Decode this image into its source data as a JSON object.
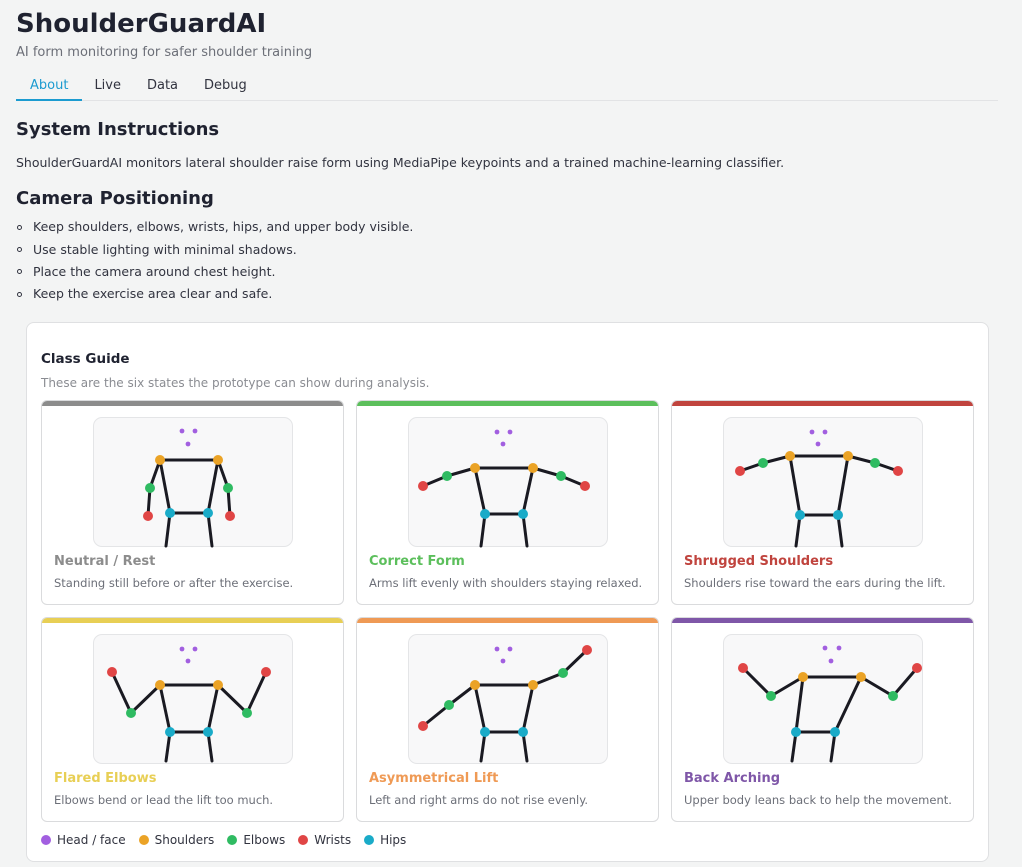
{
  "app": {
    "title": "ShoulderGuardAI",
    "subtitle": "AI form monitoring for safer shoulder training"
  },
  "tabs": [
    {
      "label": "About",
      "active": true
    },
    {
      "label": "Live",
      "active": false
    },
    {
      "label": "Data",
      "active": false
    },
    {
      "label": "Debug",
      "active": false
    }
  ],
  "system": {
    "heading": "System Instructions",
    "text": "ShoulderGuardAI monitors lateral shoulder raise form using MediaPipe keypoints and a trained machine-learning classifier."
  },
  "camera": {
    "heading": "Camera Positioning",
    "bullets": [
      "Keep shoulders, elbows, wrists, hips, and upper body visible.",
      "Use stable lighting with minimal shadows.",
      "Place the camera around chest height.",
      "Keep the exercise area clear and safe."
    ]
  },
  "guide": {
    "title": "Class Guide",
    "subtitle": "These are the six states the prototype can show during analysis.",
    "classes": [
      {
        "name": "Neutral / Rest",
        "desc": "Standing still before or after the exercise.",
        "color": "#8c8c8c",
        "pose": "neutral"
      },
      {
        "name": "Correct Form",
        "desc": "Arms lift evenly with shoulders staying relaxed.",
        "color": "#5cbf5c",
        "pose": "correct"
      },
      {
        "name": "Shrugged Shoulders",
        "desc": "Shoulders rise toward the ears during the lift.",
        "color": "#c0443e",
        "pose": "shrugged"
      },
      {
        "name": "Flared Elbows",
        "desc": "Elbows bend or lead the lift too much.",
        "color": "#e8cf55",
        "pose": "flared"
      },
      {
        "name": "Asymmetrical Lift",
        "desc": "Left and right arms do not rise evenly.",
        "color": "#ef9a55",
        "pose": "asym"
      },
      {
        "name": "Back Arching",
        "desc": "Upper body leans back to help the movement.",
        "color": "#7f57a8",
        "pose": "arch"
      }
    ]
  },
  "legend": [
    {
      "label": "Head / face",
      "color": "#a25fe0"
    },
    {
      "label": "Shoulders",
      "color": "#eba326"
    },
    {
      "label": "Elbows",
      "color": "#2fbb62"
    },
    {
      "label": "Wrists",
      "color": "#e04545"
    },
    {
      "label": "Hips",
      "color": "#1aabc8"
    }
  ],
  "keypoint_colors": {
    "head": "#a25fe0",
    "shoulder": "#eba326",
    "elbow": "#2fbb62",
    "wrist": "#e04545",
    "hip": "#1aabc8",
    "bone": "#1a1a22"
  }
}
